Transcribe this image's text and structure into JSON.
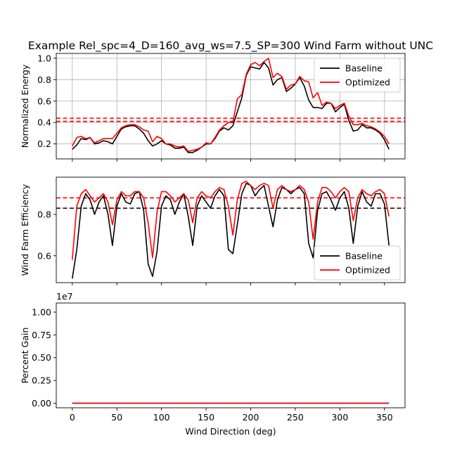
{
  "title": "Example Rel_spc=4_D=160_avg_ws=7.5_SP=300 Wind Farm without UNC",
  "colors": {
    "baseline": "#000000",
    "optimized": "#ff0000",
    "grid": "#b0b0b0"
  },
  "chart_data": [
    {
      "type": "line",
      "ylabel": "Normalized Energy",
      "xlim": [
        -18,
        373
      ],
      "ylim": [
        0.06,
        1.045
      ],
      "yticks": [
        0.2,
        0.4,
        0.6,
        0.8,
        1.0
      ],
      "ytick_labels": [
        "0.2",
        "0.4",
        "0.6",
        "0.8",
        "1.0"
      ],
      "xticks": [
        0,
        50,
        100,
        150,
        200,
        250,
        300,
        350
      ],
      "grid": true,
      "legend_position": "upper right",
      "legend": [
        "Baseline",
        "Optimized"
      ],
      "hlines": [
        {
          "y": 0.41,
          "color": "red",
          "style": "dashed"
        },
        {
          "y": 0.44,
          "color": "red",
          "style": "dashed"
        }
      ],
      "x": [
        0,
        5,
        10,
        15,
        20,
        25,
        30,
        35,
        40,
        45,
        50,
        55,
        60,
        65,
        70,
        75,
        80,
        85,
        90,
        95,
        100,
        105,
        110,
        115,
        120,
        125,
        130,
        135,
        140,
        145,
        150,
        155,
        160,
        165,
        170,
        175,
        180,
        185,
        190,
        195,
        200,
        205,
        210,
        215,
        220,
        225,
        230,
        235,
        240,
        245,
        250,
        255,
        260,
        265,
        270,
        275,
        280,
        285,
        290,
        295,
        300,
        305,
        310,
        315,
        320,
        325,
        330,
        335,
        340,
        345,
        350,
        355
      ],
      "series": [
        {
          "name": "Baseline",
          "values": [
            0.15,
            0.19,
            0.25,
            0.24,
            0.26,
            0.2,
            0.21,
            0.23,
            0.22,
            0.2,
            0.27,
            0.34,
            0.36,
            0.37,
            0.37,
            0.34,
            0.3,
            0.23,
            0.18,
            0.2,
            0.23,
            0.2,
            0.19,
            0.16,
            0.16,
            0.17,
            0.12,
            0.12,
            0.14,
            0.17,
            0.2,
            0.2,
            0.25,
            0.32,
            0.35,
            0.33,
            0.37,
            0.5,
            0.63,
            0.84,
            0.92,
            0.91,
            0.9,
            0.96,
            0.91,
            0.75,
            0.8,
            0.82,
            0.69,
            0.72,
            0.76,
            0.82,
            0.74,
            0.61,
            0.54,
            0.54,
            0.53,
            0.58,
            0.58,
            0.5,
            0.54,
            0.57,
            0.42,
            0.32,
            0.33,
            0.38,
            0.35,
            0.35,
            0.33,
            0.3,
            0.24,
            0.15
          ]
        },
        {
          "name": "Optimized",
          "values": [
            0.18,
            0.26,
            0.27,
            0.25,
            0.26,
            0.21,
            0.23,
            0.25,
            0.25,
            0.25,
            0.3,
            0.35,
            0.37,
            0.38,
            0.38,
            0.36,
            0.33,
            0.32,
            0.22,
            0.27,
            0.25,
            0.2,
            0.2,
            0.18,
            0.17,
            0.18,
            0.13,
            0.14,
            0.15,
            0.17,
            0.21,
            0.2,
            0.26,
            0.33,
            0.37,
            0.4,
            0.4,
            0.62,
            0.66,
            0.85,
            0.94,
            0.96,
            0.93,
            0.97,
            1.0,
            0.82,
            0.86,
            0.83,
            0.71,
            0.75,
            0.76,
            0.83,
            0.79,
            0.78,
            0.63,
            0.68,
            0.56,
            0.59,
            0.58,
            0.53,
            0.56,
            0.58,
            0.46,
            0.38,
            0.38,
            0.39,
            0.37,
            0.36,
            0.34,
            0.31,
            0.27,
            0.2
          ]
        }
      ]
    },
    {
      "type": "line",
      "ylabel": "Wind Farm Efficiency",
      "xlim": [
        -18,
        373
      ],
      "ylim": [
        0.47,
        0.98
      ],
      "yticks": [
        0.6,
        0.8
      ],
      "ytick_labels": [
        "0.6",
        "0.8"
      ],
      "xticks": [
        0,
        50,
        100,
        150,
        200,
        250,
        300,
        350
      ],
      "grid": false,
      "legend_position": "lower right",
      "legend": [
        "Baseline",
        "Optimized"
      ],
      "hlines": [
        {
          "y": 0.83,
          "color": "black",
          "style": "dashed"
        },
        {
          "y": 0.88,
          "color": "red",
          "style": "dashed"
        }
      ],
      "x": [
        0,
        5,
        10,
        15,
        20,
        25,
        30,
        35,
        40,
        45,
        50,
        55,
        60,
        65,
        70,
        75,
        80,
        85,
        90,
        95,
        100,
        105,
        110,
        115,
        120,
        125,
        130,
        135,
        140,
        145,
        150,
        155,
        160,
        165,
        170,
        175,
        180,
        185,
        190,
        195,
        200,
        205,
        210,
        215,
        220,
        225,
        230,
        235,
        240,
        245,
        250,
        255,
        260,
        265,
        270,
        275,
        280,
        285,
        290,
        295,
        300,
        305,
        310,
        315,
        320,
        325,
        330,
        335,
        340,
        345,
        350,
        355
      ],
      "series": [
        {
          "name": "Baseline",
          "values": [
            0.49,
            0.63,
            0.84,
            0.9,
            0.87,
            0.8,
            0.86,
            0.89,
            0.8,
            0.65,
            0.84,
            0.9,
            0.86,
            0.85,
            0.9,
            0.91,
            0.82,
            0.56,
            0.5,
            0.62,
            0.84,
            0.89,
            0.87,
            0.8,
            0.86,
            0.9,
            0.79,
            0.65,
            0.84,
            0.89,
            0.86,
            0.83,
            0.89,
            0.92,
            0.89,
            0.63,
            0.61,
            0.75,
            0.9,
            0.95,
            0.94,
            0.89,
            0.92,
            0.94,
            0.84,
            0.74,
            0.87,
            0.93,
            0.92,
            0.9,
            0.92,
            0.93,
            0.9,
            0.66,
            0.59,
            0.82,
            0.9,
            0.91,
            0.87,
            0.82,
            0.88,
            0.91,
            0.83,
            0.66,
            0.84,
            0.91,
            0.86,
            0.84,
            0.9,
            0.9,
            0.85,
            0.65
          ]
        },
        {
          "name": "Optimized",
          "values": [
            0.58,
            0.84,
            0.9,
            0.92,
            0.89,
            0.86,
            0.88,
            0.9,
            0.86,
            0.75,
            0.87,
            0.91,
            0.89,
            0.89,
            0.91,
            0.91,
            0.88,
            0.76,
            0.59,
            0.81,
            0.91,
            0.91,
            0.89,
            0.86,
            0.88,
            0.9,
            0.87,
            0.76,
            0.88,
            0.91,
            0.89,
            0.88,
            0.91,
            0.93,
            0.92,
            0.84,
            0.7,
            0.87,
            0.95,
            0.96,
            0.94,
            0.92,
            0.94,
            0.95,
            0.94,
            0.83,
            0.92,
            0.94,
            0.92,
            0.91,
            0.92,
            0.94,
            0.92,
            0.86,
            0.68,
            0.86,
            0.93,
            0.93,
            0.91,
            0.88,
            0.91,
            0.93,
            0.91,
            0.77,
            0.88,
            0.92,
            0.9,
            0.89,
            0.91,
            0.92,
            0.9,
            0.79
          ]
        }
      ]
    },
    {
      "type": "line",
      "ylabel": "Percent Gain",
      "xlabel": "Wind Direction (deg)",
      "offset_text": "1e7",
      "xlim": [
        -18,
        373
      ],
      "ylim": [
        -0.05,
        1.1
      ],
      "yticks": [
        0.0,
        0.25,
        0.5,
        0.75,
        1.0
      ],
      "ytick_labels": [
        "0.00",
        "0.25",
        "0.50",
        "0.75",
        "1.00"
      ],
      "xticks": [
        0,
        50,
        100,
        150,
        200,
        250,
        300,
        350
      ],
      "xtick_labels": [
        "0",
        "50",
        "100",
        "150",
        "200",
        "250",
        "300",
        "350"
      ],
      "grid": false,
      "x": [
        0,
        355
      ],
      "series": [
        {
          "name": "Baseline",
          "values": [
            0,
            0
          ]
        },
        {
          "name": "Optimized",
          "values": [
            0,
            0
          ]
        }
      ]
    }
  ]
}
